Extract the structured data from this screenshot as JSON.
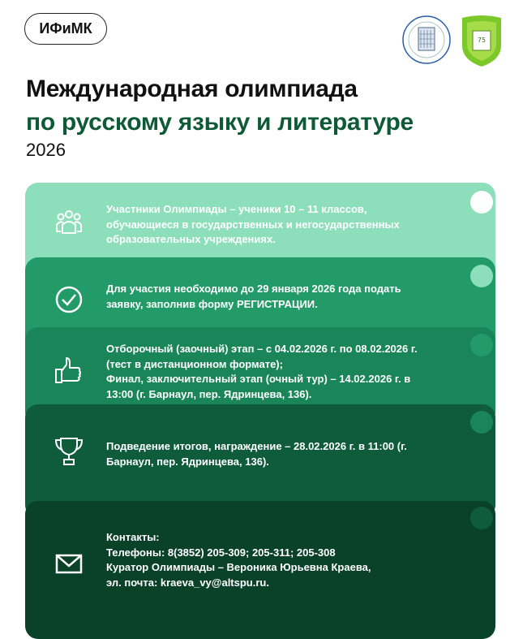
{
  "header": {
    "badge": "ИФиМК",
    "logos": [
      "АлтГПУ seal",
      "Институт филологии и межкультурной коммуникации"
    ]
  },
  "title": {
    "line1": "Международная олимпиада",
    "line2": "по русскому языку и литературе",
    "year": "2026"
  },
  "colors": {
    "title_green": "#0f5a36",
    "card1": "#8ddfbb",
    "card2": "#239b68",
    "card3": "#1a8558",
    "card4": "#0e5c3b",
    "card5": "#0a4129"
  },
  "cards": [
    {
      "icon": "people-icon",
      "text": "Участники Олимпиады – ученики 10 – 11 классов,\nобучающиеся в государственных и негосударственных\nобразовательных учреждениях."
    },
    {
      "icon": "check-circle-icon",
      "text": "Для участия необходимо до 29 января 2026 года подать\nзаявку, заполнив форму РЕГИСТРАЦИИ."
    },
    {
      "icon": "thumbs-up-icon",
      "text": "Отборочный (заочный) этап – с 04.02.2026 г. по 08.02.2026 г.\n(тест в дистанционном формате);\nФинал, заключительный этап (очный тур) – 14.02.2026 г. в\n13:00 (г. Барнаул, пер. Ядринцева, 136)."
    },
    {
      "icon": "trophy-icon",
      "text": "Подведение итогов, награждение – 28.02.2026 г. в 11:00 (г.\nБарнаул, пер. Ядринцева, 136)."
    },
    {
      "icon": "envelope-icon",
      "text": "Контакты:\nТелефоны: 8(3852) 205-309; 205-311; 205-308\nКуратор Олимпиады – Вероника Юрьевна Краева,\nэл. почта: kraeva_vy@altspu.ru."
    }
  ]
}
